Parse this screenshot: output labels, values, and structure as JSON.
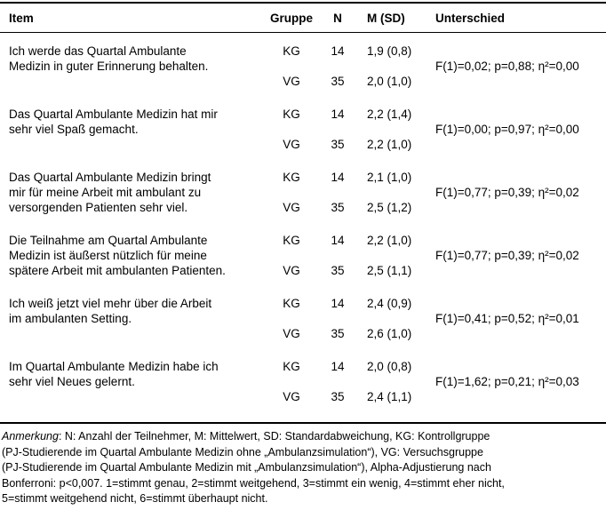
{
  "colors": {
    "text": "#000000",
    "background": "#ffffff",
    "rule": "#000000"
  },
  "table": {
    "columns": {
      "item": "Item",
      "gruppe": "Gruppe",
      "n": "N",
      "msd": "M (SD)",
      "unterschied": "Unterschied"
    },
    "rows": [
      {
        "item": "Ich werde das Quartal Ambulante Medizin in guter Erinnerung behalten.",
        "kg": {
          "label": "KG",
          "n": "14",
          "msd": "1,9 (0,8)"
        },
        "vg": {
          "label": "VG",
          "n": "35",
          "msd": "2,0 (1,0)"
        },
        "unterschied": "F(1)=0,02; p=0,88; η²=0,00"
      },
      {
        "item": "Das Quartal Ambulante Medizin hat mir sehr viel Spaß gemacht.",
        "kg": {
          "label": "KG",
          "n": "14",
          "msd": "2,2 (1,4)"
        },
        "vg": {
          "label": "VG",
          "n": "35",
          "msd": "2,2 (1,0)"
        },
        "unterschied": "F(1)=0,00; p=0,97; η²=0,00"
      },
      {
        "item": "Das Quartal Ambulante Medizin bringt mir für meine Arbeit mit ambulant zu versorgenden Patienten sehr viel.",
        "kg": {
          "label": "KG",
          "n": "14",
          "msd": "2,1 (1,0)"
        },
        "vg": {
          "label": "VG",
          "n": "35",
          "msd": "2,5 (1,2)"
        },
        "unterschied": "F(1)=0,77; p=0,39; η²=0,02"
      },
      {
        "item": "Die Teilnahme am Quartal Ambulante Medizin ist äußerst nützlich für meine spätere Arbeit mit ambulanten Patienten.",
        "kg": {
          "label": "KG",
          "n": "14",
          "msd": "2,2 (1,0)"
        },
        "vg": {
          "label": "VG",
          "n": "35",
          "msd": "2,5 (1,1)"
        },
        "unterschied": "F(1)=0,77; p=0,39; η²=0,02"
      },
      {
        "item": "Ich weiß jetzt viel mehr über die Arbeit im ambulanten Setting.",
        "kg": {
          "label": "KG",
          "n": "14",
          "msd": "2,4 (0,9)"
        },
        "vg": {
          "label": "VG",
          "n": "35",
          "msd": "2,6 (1,0)"
        },
        "unterschied": "F(1)=0,41; p=0,52; η²=0,01"
      },
      {
        "item": "Im Quartal Ambulante Medizin habe ich sehr viel Neues gelernt.",
        "kg": {
          "label": "KG",
          "n": "14",
          "msd": "2,0 (0,8)"
        },
        "vg": {
          "label": "VG",
          "n": "35",
          "msd": "2,4 (1,1)"
        },
        "unterschied": "F(1)=1,62; p=0,21; η²=0,03"
      }
    ]
  },
  "footnote": {
    "label": "Anmerkung",
    "line1_rest": ": N: Anzahl der Teilnehmer, M: Mittelwert, SD: Standardabweichung, KG: Kontrollgruppe",
    "lines": [
      "(PJ-Studierende im Quartal Ambulante Medizin ohne „Ambulanzsimulation“), VG: Versuchsgruppe",
      "(PJ-Studierende im Quartal Ambulante Medizin mit „Ambulanzsimulation“), Alpha-Adjustierung nach",
      "Bonferroni: p<0,007. 1=stimmt genau, 2=stimmt weitgehend, 3=stimmt ein wenig, 4=stimmt eher nicht,",
      "5=stimmt weitgehend nicht, 6=stimmt überhaupt nicht."
    ]
  }
}
